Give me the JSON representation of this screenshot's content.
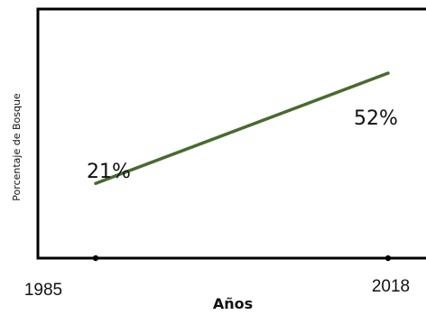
{
  "chart_data": {
    "type": "line",
    "x": [
      1985,
      2018
    ],
    "series": [
      {
        "values": [
          21,
          52
        ],
        "color": "#476b2f"
      }
    ],
    "data_labels": [
      "21%",
      "52%"
    ],
    "x_tick_labels": [
      "1985",
      "2018"
    ],
    "xlabel": "Años",
    "ylabel": "Porcentaje de Bosque",
    "title": "",
    "ylim": [
      0,
      70
    ],
    "grid": false
  }
}
